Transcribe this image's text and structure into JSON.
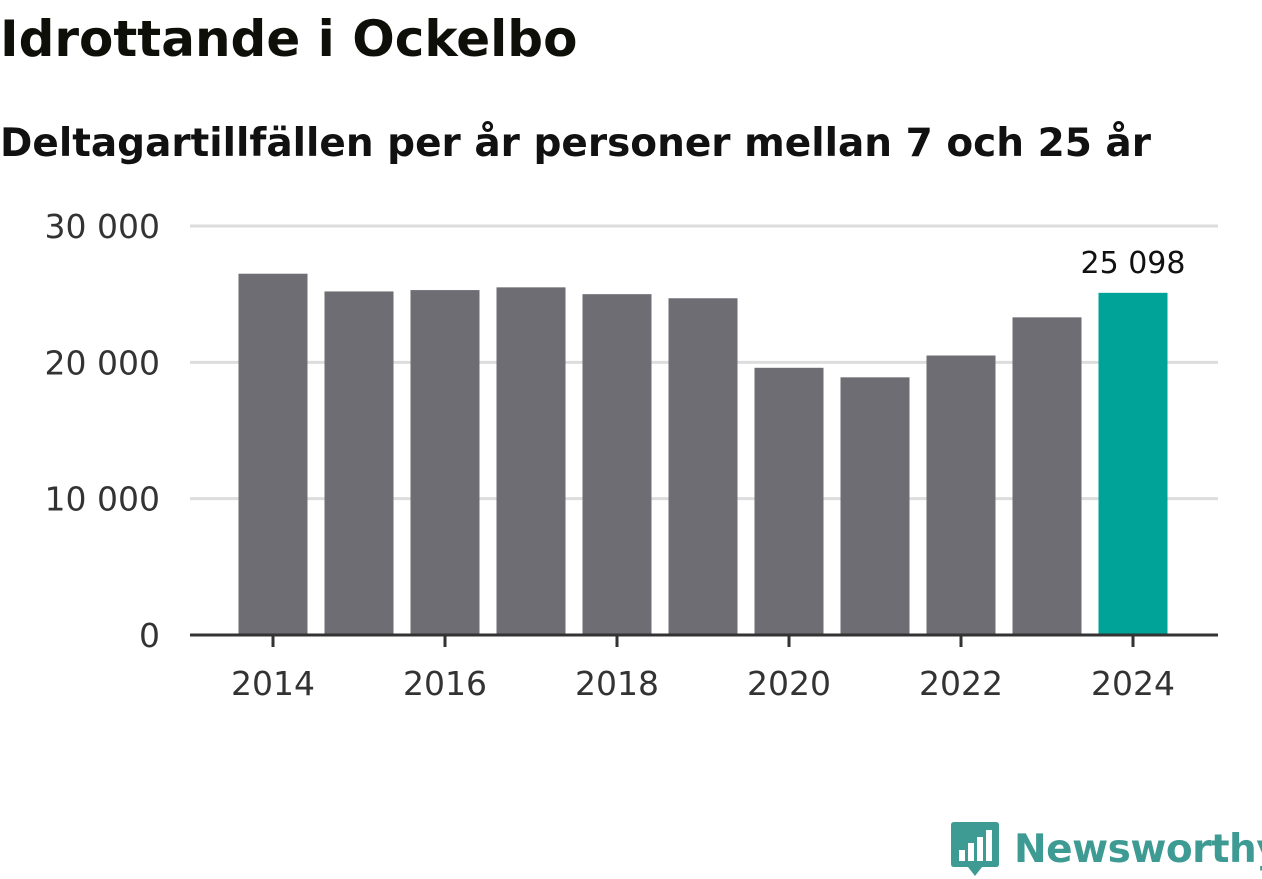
{
  "chart_data": {
    "type": "bar",
    "title": "Idrottande i Ockelbo",
    "subtitle": "Deltagartillfällen per år personer mellan 7 och 25 år",
    "categories": [
      "2014",
      "2015",
      "2016",
      "2017",
      "2018",
      "2019",
      "2020",
      "2021",
      "2022",
      "2023",
      "2024"
    ],
    "values": [
      26500,
      25200,
      25300,
      25500,
      25000,
      24700,
      19600,
      18900,
      20500,
      23300,
      25098
    ],
    "x_tick_labels": [
      "2014",
      "2016",
      "2018",
      "2020",
      "2022",
      "2024"
    ],
    "y_ticks": [
      0,
      10000,
      20000,
      30000
    ],
    "y_tick_labels": [
      "0",
      "10 000",
      "20 000",
      "30 000"
    ],
    "ylim": [
      0,
      30000
    ],
    "xlabel": "",
    "ylabel": "",
    "highlight_index": 10,
    "highlight_label": "25 098",
    "grid": true,
    "colors": {
      "bar": "#6e6d73",
      "highlight": "#00a398",
      "grid": "#dddddd",
      "axis": "#333333"
    }
  },
  "brand": {
    "name": "Newsworthy",
    "color": "#3e9b93"
  }
}
